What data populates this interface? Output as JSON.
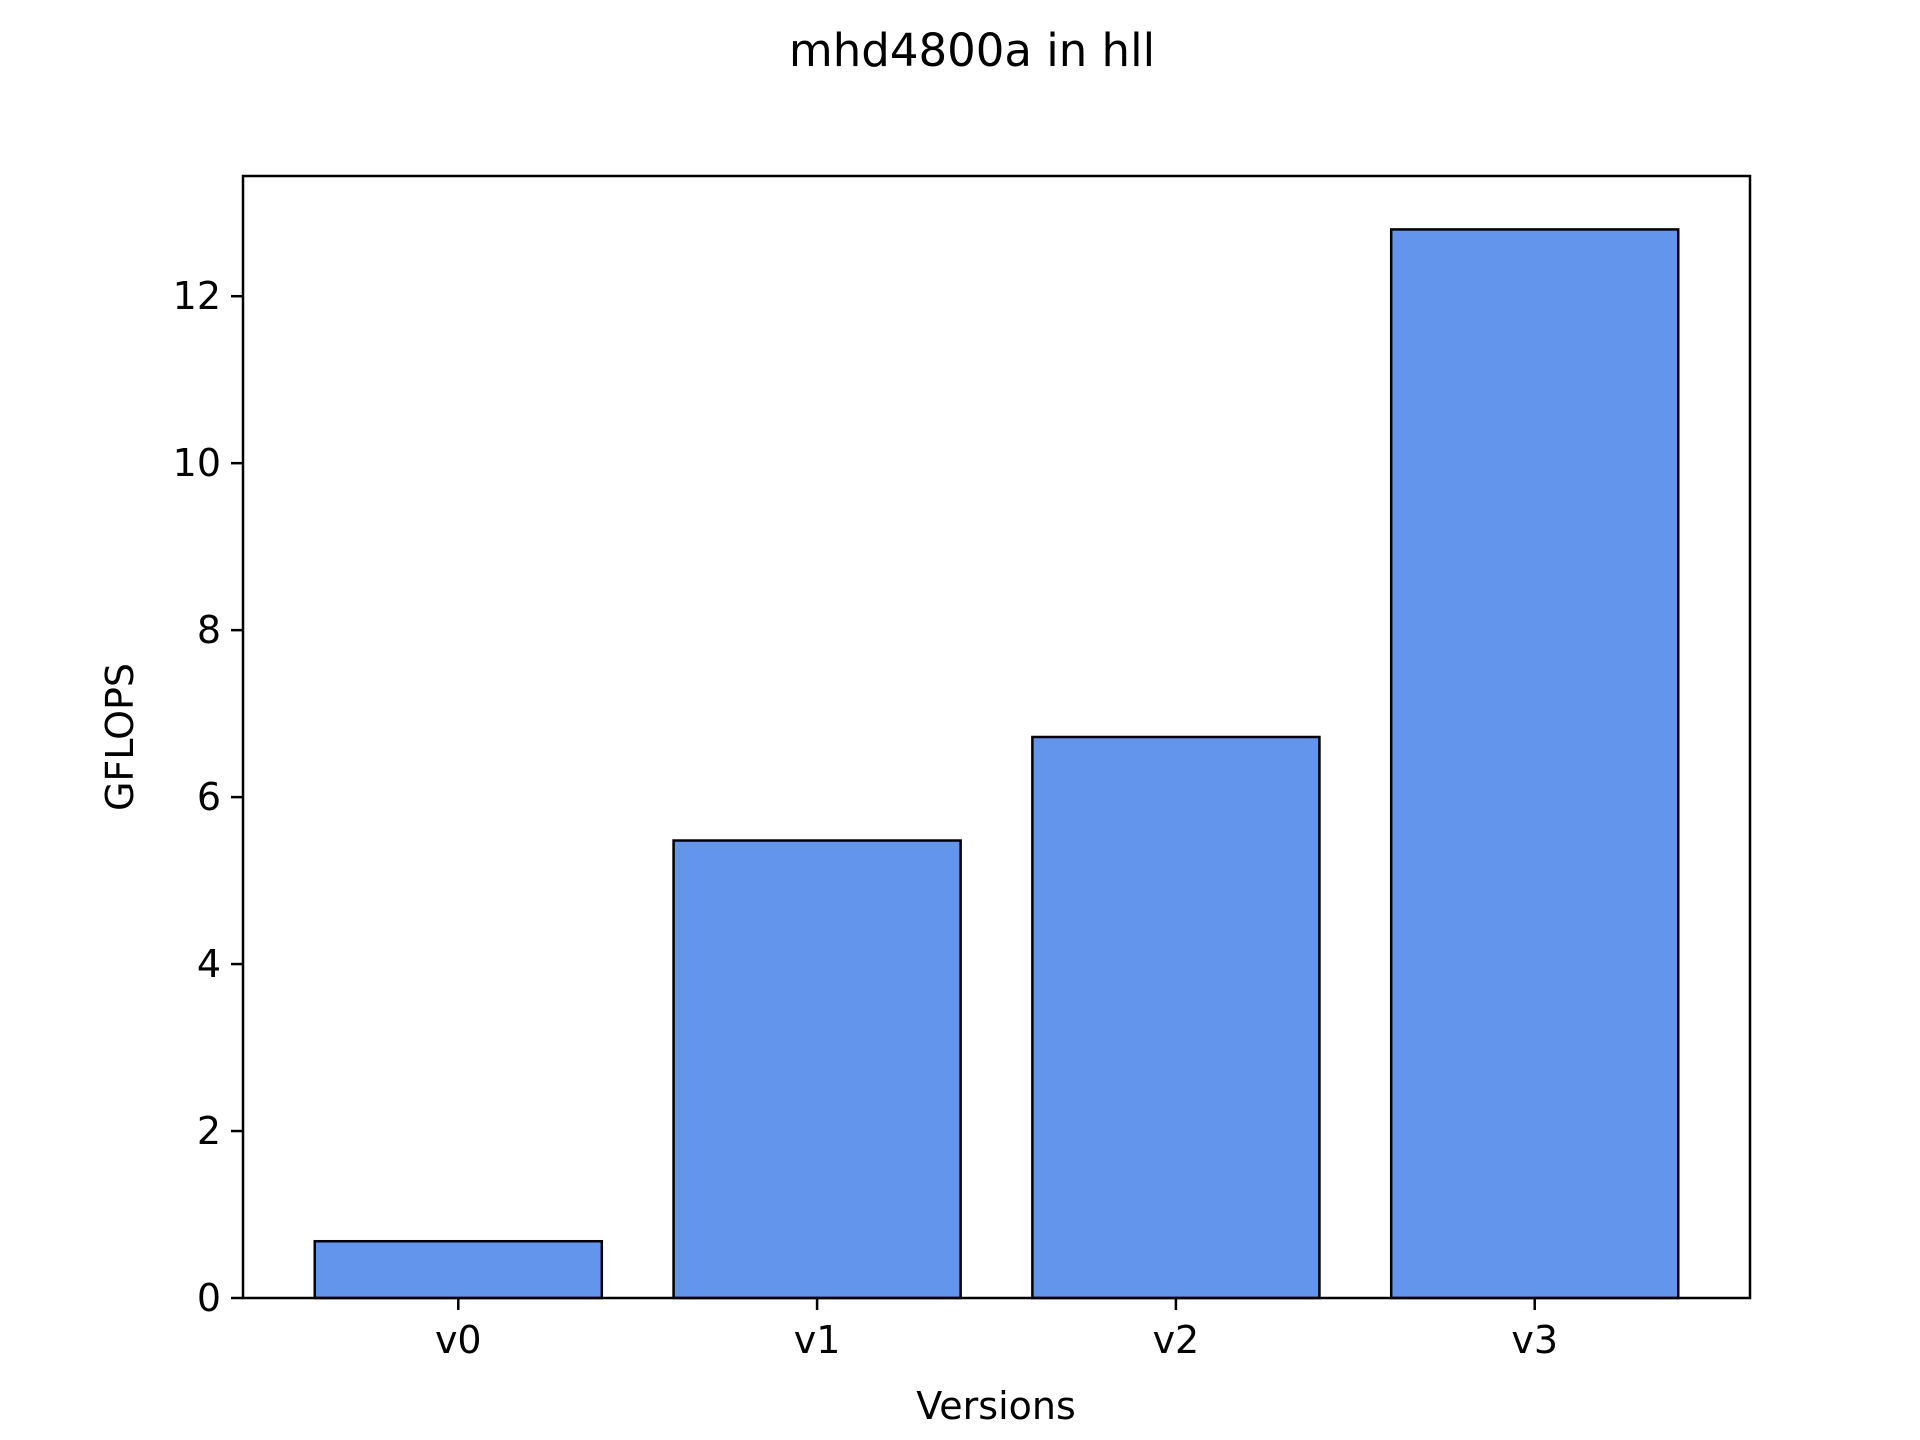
{
  "chart_data": {
    "type": "bar",
    "title": "mhd4800a in hll",
    "xlabel": "Versions",
    "ylabel": "GFLOPS",
    "categories": [
      "v0",
      "v1",
      "v2",
      "v3"
    ],
    "values": [
      0.68,
      5.48,
      6.72,
      12.8
    ],
    "ylim": [
      0,
      13.44
    ],
    "yticks": [
      "0",
      "2",
      "4",
      "6",
      "8",
      "10",
      "12"
    ],
    "grid": false,
    "legend": "none",
    "colors": {
      "bar_fill": "#6495ED",
      "bar_edge": "#000000",
      "axis": "#000000",
      "background": "#ffffff"
    }
  }
}
